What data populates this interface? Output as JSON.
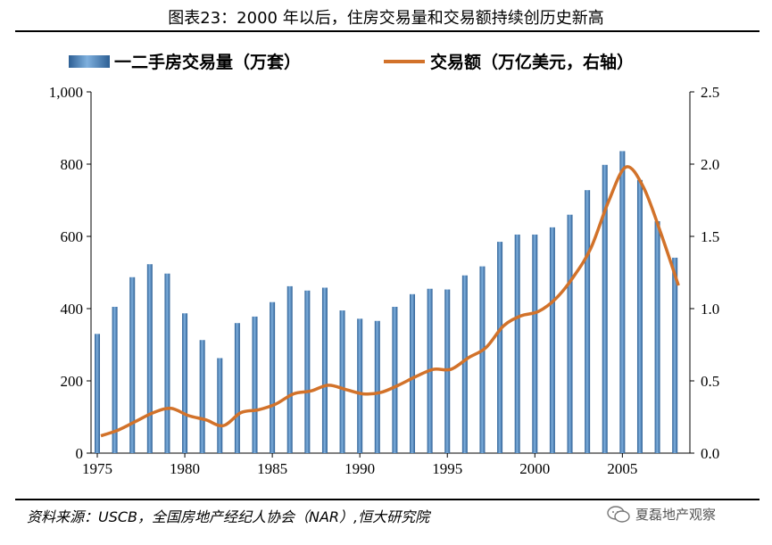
{
  "title": "图表23：2000 年以后，住房交易量和交易额持续创历史新高",
  "source": "资料来源：USCB，全国房地产经纪人协会（NAR）,恒大研究院",
  "watermark": "夏磊地产观察",
  "colors": {
    "bar": "#4a82bd",
    "bar_dark": "#2d5f94",
    "line": "#d2722a"
  },
  "chart_data": {
    "type": "bar+line",
    "years": [
      1975,
      1976,
      1977,
      1978,
      1979,
      1980,
      1981,
      1982,
      1983,
      1984,
      1985,
      1986,
      1987,
      1988,
      1989,
      1990,
      1991,
      1992,
      1993,
      1994,
      1995,
      1996,
      1997,
      1998,
      1999,
      2000,
      2001,
      2002,
      2003,
      2004,
      2005,
      2006,
      2007,
      2008
    ],
    "series": [
      {
        "name": "一二手房交易量（万套）",
        "type": "bar",
        "axis": "left",
        "values": [
          330,
          405,
          487,
          523,
          497,
          387,
          313,
          263,
          360,
          378,
          418,
          462,
          450,
          458,
          395,
          372,
          366,
          405,
          440,
          455,
          453,
          492,
          517,
          585,
          605,
          605,
          625,
          660,
          728,
          798,
          836,
          756,
          642,
          541
        ]
      },
      {
        "name": "交易额（万亿美元，右轴）",
        "type": "line",
        "axis": "right",
        "values": [
          0.12,
          0.16,
          0.22,
          0.28,
          0.31,
          0.26,
          0.23,
          0.19,
          0.28,
          0.3,
          0.34,
          0.41,
          0.43,
          0.47,
          0.44,
          0.41,
          0.42,
          0.47,
          0.53,
          0.58,
          0.58,
          0.66,
          0.73,
          0.88,
          0.95,
          0.98,
          1.07,
          1.22,
          1.42,
          1.74,
          1.98,
          1.84,
          1.52,
          1.16
        ]
      }
    ],
    "y_left": {
      "range": [
        0,
        1000
      ],
      "ticks": [
        "0",
        "200",
        "400",
        "600",
        "800",
        "1,000"
      ],
      "tick_values": [
        0,
        200,
        400,
        600,
        800,
        1000
      ]
    },
    "y_right": {
      "range": [
        0,
        2.5
      ],
      "ticks": [
        "0.0",
        "0.5",
        "1.0",
        "1.5",
        "2.0",
        "2.5"
      ],
      "tick_values": [
        0,
        0.5,
        1.0,
        1.5,
        2.0,
        2.5
      ]
    },
    "x_ticks": [
      "1975",
      "1980",
      "1985",
      "1990",
      "1995",
      "2000",
      "2005"
    ],
    "x_tick_values": [
      1975,
      1980,
      1985,
      1990,
      1995,
      2000,
      2005
    ],
    "legend": {
      "position": "top",
      "items": [
        "一二手房交易量（万套）",
        "交易额（万亿美元，右轴）"
      ]
    },
    "grid": false
  }
}
